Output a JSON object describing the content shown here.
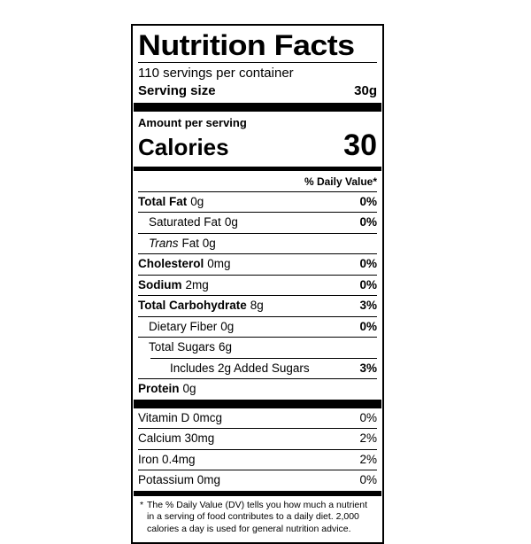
{
  "label": {
    "title": "Nutrition Facts",
    "servings_per_container": "110 servings per container",
    "serving_size": {
      "label": "Serving size",
      "value": "30g"
    },
    "amount_per_serving": "Amount per serving",
    "calories": {
      "label": "Calories",
      "value": "30"
    },
    "daily_value_header": "% Daily Value*",
    "rows": [
      {
        "name": "Total Fat",
        "amount": "0g",
        "dv": "0%"
      },
      {
        "name": "Saturated Fat",
        "amount": "0g",
        "dv": "0%"
      },
      {
        "name": "Trans",
        "amount": "Fat 0g",
        "dv": ""
      },
      {
        "name": "Cholesterol",
        "amount": "0mg",
        "dv": "0%"
      },
      {
        "name": "Sodium",
        "amount": "2mg",
        "dv": "0%"
      },
      {
        "name": "Total Carbohydrate",
        "amount": "8g",
        "dv": "3%"
      },
      {
        "name": "Dietary Fiber",
        "amount": "0g",
        "dv": "0%"
      },
      {
        "name": "Total Sugars",
        "amount": "6g",
        "dv": ""
      },
      {
        "name": "Includes 2g Added Sugars",
        "amount": "",
        "dv": "3%"
      },
      {
        "name": "Protein",
        "amount": "0g",
        "dv": ""
      }
    ],
    "vitamins": [
      {
        "name": "Vitamin D 0mcg",
        "dv": "0%"
      },
      {
        "name": "Calcium 30mg",
        "dv": "2%"
      },
      {
        "name": "Iron 0.4mg",
        "dv": "2%"
      },
      {
        "name": "Potassium 0mg",
        "dv": "0%"
      }
    ],
    "footnote_marker": "*",
    "footnote": "The % Daily Value (DV) tells you how much a nutrient in a serving of food contributes to a daily diet. 2,000 calories a day is used for general nutrition advice.",
    "colors": {
      "ink": "#000000",
      "paper": "#ffffff"
    }
  }
}
